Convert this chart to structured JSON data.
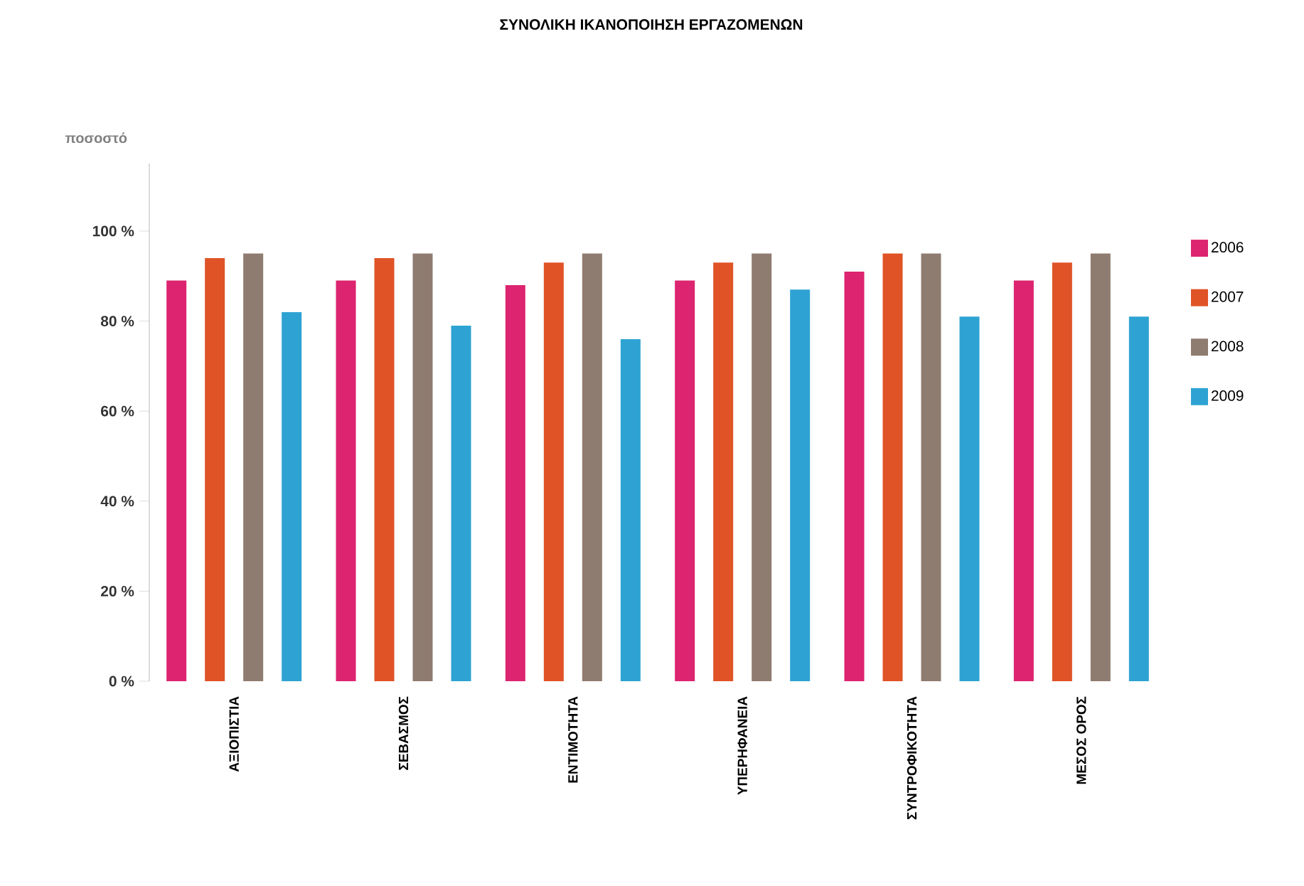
{
  "chart_data": {
    "type": "bar",
    "title": "ΣΥΝΟΛΙΚΗ ΙΚΑΝΟΠΟΙΗΣΗ ΕΡΓΑΖΟΜΕΝΩΝ",
    "ylabel": "ποσοστό",
    "categories": [
      "ΑΞΙΟΠΙΣΤΙΑ",
      "ΣΕΒΑΣΜΟΣ",
      "ΕΝΤΙΜΟΤΗΤΑ",
      "ΥΠΕΡΗΦΑΝΕΙΑ",
      "ΣΥΝΤΡΟΦΙΚΟΤΗΤΑ",
      "ΜΕΣΟΣ ΟΡΟΣ"
    ],
    "series": [
      {
        "name": "2006",
        "color": "#dc2470",
        "values": [
          89,
          89,
          88,
          89,
          91,
          89
        ]
      },
      {
        "name": "2007",
        "color": "#e05326",
        "values": [
          94,
          94,
          93,
          93,
          95,
          93
        ]
      },
      {
        "name": "2008",
        "color": "#8f7c70",
        "values": [
          95,
          95,
          95,
          95,
          95,
          95
        ]
      },
      {
        "name": "2009",
        "color": "#2ea3d3",
        "values": [
          82,
          79,
          76,
          87,
          81,
          81
        ]
      }
    ],
    "ylim": [
      0,
      115
    ],
    "yticks": [
      {
        "value": 0,
        "label": "0 %"
      },
      {
        "value": 20,
        "label": "20 %"
      },
      {
        "value": 40,
        "label": "40 %"
      },
      {
        "value": 60,
        "label": "60 %"
      },
      {
        "value": 80,
        "label": "80 %"
      },
      {
        "value": 100,
        "label": "100 %"
      }
    ],
    "legend": "right",
    "grid": false
  }
}
